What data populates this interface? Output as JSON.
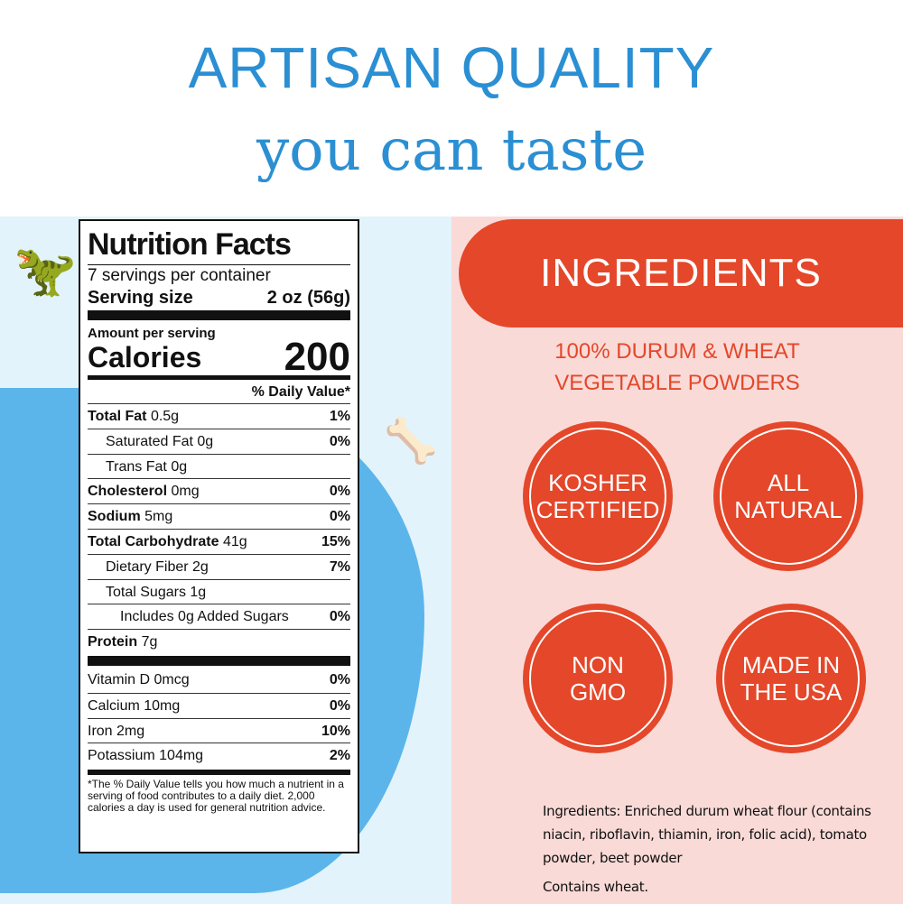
{
  "header": {
    "title": "ARTISAN QUALITY",
    "subtitle": "you can taste"
  },
  "nutrition": {
    "title": "Nutrition Facts",
    "servings": "7 servings per container",
    "serving_size_label": "Serving size",
    "serving_size_value": "2 oz (56g)",
    "amount_label": "Amount per serving",
    "calories_label": "Calories",
    "calories_value": "200",
    "dv_header": "% Daily Value*",
    "rows": [
      {
        "name": "Total Fat",
        "amount": "0.5g",
        "dv": "1%",
        "bold": true,
        "indent": 0
      },
      {
        "name": "Saturated Fat",
        "amount": "0g",
        "dv": "0%",
        "bold": false,
        "indent": 1
      },
      {
        "name": "Trans Fat",
        "amount": "0g",
        "dv": "",
        "bold": false,
        "indent": 1
      },
      {
        "name": "Cholesterol",
        "amount": "0mg",
        "dv": "0%",
        "bold": true,
        "indent": 0
      },
      {
        "name": "Sodium",
        "amount": "5mg",
        "dv": "0%",
        "bold": true,
        "indent": 0
      },
      {
        "name": "Total Carbohydrate",
        "amount": "41g",
        "dv": "15%",
        "bold": true,
        "indent": 0
      },
      {
        "name": "Dietary Fiber",
        "amount": "2g",
        "dv": "7%",
        "bold": false,
        "indent": 1
      },
      {
        "name": "Total Sugars",
        "amount": "1g",
        "dv": "",
        "bold": false,
        "indent": 1
      },
      {
        "name": "Includes 0g Added Sugars",
        "amount": "",
        "dv": "0%",
        "bold": false,
        "indent": 2
      },
      {
        "name": "Protein",
        "amount": "7g",
        "dv": "",
        "bold": true,
        "indent": 0
      }
    ],
    "vitamins": [
      {
        "name": "Vitamin D",
        "amount": "0mcg",
        "dv": "0%"
      },
      {
        "name": "Calcium",
        "amount": "10mg",
        "dv": "0%"
      },
      {
        "name": "Iron",
        "amount": "2mg",
        "dv": "10%"
      },
      {
        "name": "Potassium",
        "amount": "104mg",
        "dv": "2%"
      }
    ],
    "footnote": "*The % Daily Value tells you how much a nutrient in a serving of food contributes to a daily diet. 2,000 calories a day is used for general nutrition advice."
  },
  "ingredients_panel": {
    "banner": "INGREDIENTS",
    "sub1": "100% DURUM & WHEAT",
    "sub2": "VEGETABLE POWDERS",
    "badges": [
      "KOSHER\nCERTIFIED",
      "ALL\nNATURAL",
      "NON\nGMO",
      "MADE IN\nTHE USA"
    ],
    "ingredients_text": "Ingredients: Enriched durum wheat flour (contains niacin, riboflavin, thiamin, iron, folic acid), tomato powder, beet powder",
    "allergen": "Contains wheat."
  },
  "colors": {
    "blue": "#2b8fd3",
    "red": "#e4472a",
    "pink": "#f9dad7",
    "light_blue": "#e2f3fb"
  }
}
